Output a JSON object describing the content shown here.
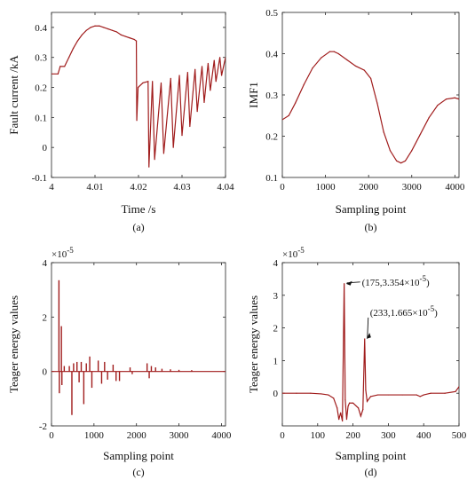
{
  "chart_data": [
    {
      "panel": "a",
      "type": "line",
      "caption": "(a)",
      "xlabel": "Time /s",
      "ylabel": "Fault current /kA",
      "xlim": [
        4,
        4.04
      ],
      "ylim": [
        -0.1,
        0.45
      ],
      "xticks": [
        "4",
        "4.01",
        "4.02",
        "4.03",
        "4.04"
      ],
      "yticks": [
        "-0.1",
        "0",
        "0.1",
        "0.2",
        "0.3",
        "0.4"
      ],
      "color": "#a01c1c",
      "series": [
        {
          "x": [
            4.0,
            4.0015,
            4.002,
            4.003,
            4.004,
            4.005,
            4.006,
            4.007,
            4.008,
            4.009,
            4.01,
            4.011,
            4.012,
            4.013,
            4.014,
            4.015,
            4.016,
            4.017,
            4.018,
            4.019,
            4.0195,
            4.0196,
            4.0199,
            4.021,
            4.0222,
            4.0224,
            4.0232,
            4.0237,
            4.0252,
            4.0258,
            4.0274,
            4.028,
            4.0294,
            4.03,
            4.0313,
            4.0318,
            4.033,
            4.0335,
            4.0346,
            4.0351,
            4.036,
            4.0365,
            4.0374,
            4.0378,
            4.0387,
            4.0391,
            4.04,
            4.0404
          ],
          "y": [
            0.245,
            0.245,
            0.27,
            0.27,
            0.3,
            0.33,
            0.355,
            0.375,
            0.39,
            0.4,
            0.405,
            0.405,
            0.4,
            0.395,
            0.39,
            0.385,
            0.375,
            0.37,
            0.365,
            0.36,
            0.355,
            0.09,
            0.2,
            0.215,
            0.22,
            -0.065,
            0.22,
            -0.04,
            0.215,
            -0.02,
            0.23,
            0.0,
            0.24,
            0.04,
            0.25,
            0.07,
            0.26,
            0.12,
            0.27,
            0.15,
            0.28,
            0.19,
            0.29,
            0.22,
            0.3,
            0.24,
            0.3,
            0.27
          ]
        }
      ]
    },
    {
      "panel": "b",
      "type": "line",
      "caption": "(b)",
      "xlabel": "Sampling point",
      "ylabel": "IMF1",
      "xlim": [
        0,
        4096
      ],
      "ylim": [
        0.1,
        0.5
      ],
      "xticks": [
        "0",
        "1000",
        "2000",
        "3000",
        "4000"
      ],
      "yticks": [
        "0.1",
        "0.2",
        "0.3",
        "0.4",
        "0.5"
      ],
      "color": "#a01c1c",
      "series": [
        {
          "x": [
            0,
            150,
            300,
            500,
            700,
            900,
            1100,
            1200,
            1300,
            1500,
            1700,
            1900,
            2050,
            2200,
            2350,
            2500,
            2650,
            2750,
            2850,
            3000,
            3200,
            3400,
            3600,
            3800,
            4000,
            4096
          ],
          "y": [
            0.24,
            0.25,
            0.28,
            0.325,
            0.365,
            0.39,
            0.405,
            0.405,
            0.4,
            0.385,
            0.37,
            0.36,
            0.34,
            0.28,
            0.21,
            0.165,
            0.14,
            0.135,
            0.14,
            0.165,
            0.205,
            0.245,
            0.275,
            0.29,
            0.293,
            0.29
          ]
        }
      ]
    },
    {
      "panel": "c",
      "type": "line",
      "caption": "(c)",
      "xlabel": "Sampling point",
      "ylabel": "Teager energy values",
      "xlim": [
        0,
        4096
      ],
      "ylim": [
        -2,
        4
      ],
      "scale_label": "×10",
      "scale_exponent": "-5",
      "xticks": [
        "0",
        "1000",
        "2000",
        "3000",
        "4000"
      ],
      "yticks": [
        "-2",
        "0",
        "2",
        "4"
      ],
      "color": "#a01c1c",
      "spikes": [
        {
          "x": 175,
          "y": 3.354
        },
        {
          "x": 185,
          "y": -0.8
        },
        {
          "x": 233,
          "y": 1.665
        },
        {
          "x": 245,
          "y": -0.5
        },
        {
          "x": 300,
          "y": 0.2
        },
        {
          "x": 420,
          "y": 0.2
        },
        {
          "x": 480,
          "y": -1.6
        },
        {
          "x": 520,
          "y": 0.3
        },
        {
          "x": 600,
          "y": 0.35
        },
        {
          "x": 650,
          "y": -0.4
        },
        {
          "x": 700,
          "y": 0.35
        },
        {
          "x": 760,
          "y": -1.2
        },
        {
          "x": 820,
          "y": 0.3
        },
        {
          "x": 900,
          "y": 0.55
        },
        {
          "x": 950,
          "y": -0.6
        },
        {
          "x": 1100,
          "y": 0.4
        },
        {
          "x": 1180,
          "y": -0.45
        },
        {
          "x": 1250,
          "y": 0.35
        },
        {
          "x": 1320,
          "y": -0.3
        },
        {
          "x": 1450,
          "y": 0.25
        },
        {
          "x": 1520,
          "y": -0.35
        },
        {
          "x": 1600,
          "y": -0.35
        },
        {
          "x": 1850,
          "y": 0.15
        },
        {
          "x": 1900,
          "y": -0.1
        },
        {
          "x": 2250,
          "y": 0.3
        },
        {
          "x": 2300,
          "y": -0.25
        },
        {
          "x": 2350,
          "y": 0.2
        },
        {
          "x": 2450,
          "y": 0.15
        },
        {
          "x": 2600,
          "y": 0.1
        },
        {
          "x": 2800,
          "y": 0.08
        },
        {
          "x": 3000,
          "y": 0.06
        },
        {
          "x": 3300,
          "y": 0.05
        }
      ]
    },
    {
      "panel": "d",
      "type": "line",
      "caption": "(d)",
      "xlabel": "Sampling point",
      "ylabel": "Teager energy values",
      "xlim": [
        0,
        500
      ],
      "ylim": [
        -1,
        4
      ],
      "scale_label": "×10",
      "scale_exponent": "-5",
      "xticks": [
        "0",
        "100",
        "200",
        "300",
        "400",
        "500"
      ],
      "yticks": [
        "0",
        "1",
        "2",
        "3",
        "4"
      ],
      "color": "#a01c1c",
      "series": [
        {
          "x": [
            0,
            40,
            80,
            110,
            130,
            145,
            155,
            160,
            165,
            170,
            175,
            178,
            182,
            186,
            190,
            200,
            215,
            222,
            228,
            233,
            236,
            240,
            250,
            270,
            300,
            340,
            380,
            390,
            400,
            420,
            460,
            490,
            500
          ],
          "y": [
            0.0,
            0.0,
            0.0,
            -0.02,
            -0.05,
            -0.15,
            -0.45,
            -0.8,
            -0.6,
            -0.85,
            3.354,
            -0.2,
            -0.8,
            -0.4,
            -0.3,
            -0.3,
            -0.45,
            -0.7,
            -0.5,
            1.665,
            0.1,
            -0.25,
            -0.1,
            -0.05,
            -0.05,
            -0.05,
            -0.05,
            -0.1,
            -0.05,
            0.0,
            0.0,
            0.05,
            0.2
          ]
        }
      ],
      "annotations": [
        {
          "x": 175,
          "y": 3.354,
          "label": "(175,3.354×10",
          "exp": "-5",
          "close": ")"
        },
        {
          "x": 233,
          "y": 1.665,
          "label": "(233,1.665×10",
          "exp": "-5",
          "close": ")"
        }
      ]
    }
  ]
}
